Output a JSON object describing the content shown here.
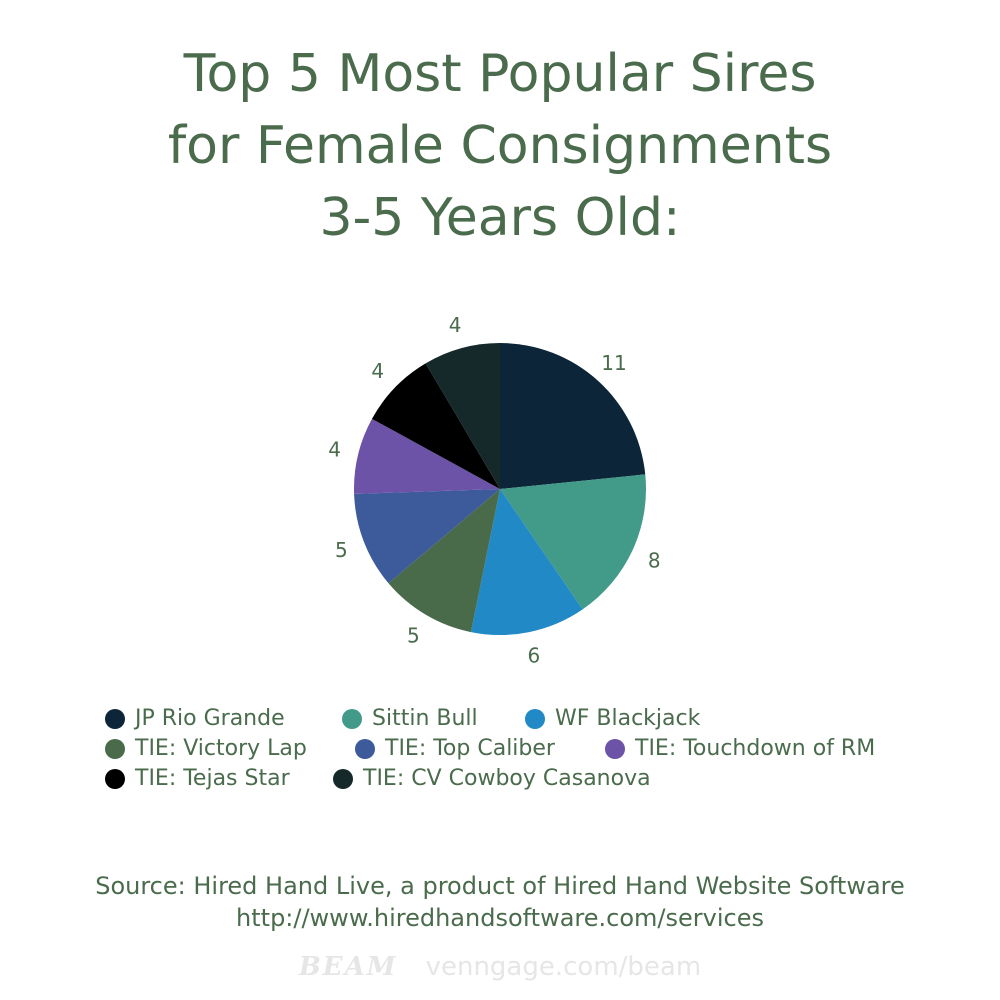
{
  "chart_data": {
    "type": "pie",
    "title": [
      "Top 5 Most Popular Sires",
      "for Female Consignments",
      "3-5 Years Old:"
    ],
    "categories": [
      "JP Rio Grande",
      "Sittin Bull",
      "WF Blackjack",
      "TIE: Victory Lap",
      "TIE: Top Caliber",
      "TIE: Touchdown of RM",
      "TIE: Tejas Star",
      "TIE: CV Cowboy Casanova"
    ],
    "values": [
      11,
      8,
      6,
      5,
      5,
      4,
      4,
      4
    ],
    "colors": [
      "#0c2539",
      "#429a89",
      "#2189c6",
      "#4a6b4a",
      "#3d5a9b",
      "#6c53a8",
      "#000000",
      "#16292a"
    ],
    "legend_position": "bottom",
    "data_labels": true
  },
  "source": {
    "line1": "Source: Hired Hand Live, a product of Hired Hand Website Software",
    "line2": "http://www.hiredhandsoftware.com/services"
  },
  "watermark": {
    "brand": "BEAM",
    "url": "venngage.com/beam"
  }
}
